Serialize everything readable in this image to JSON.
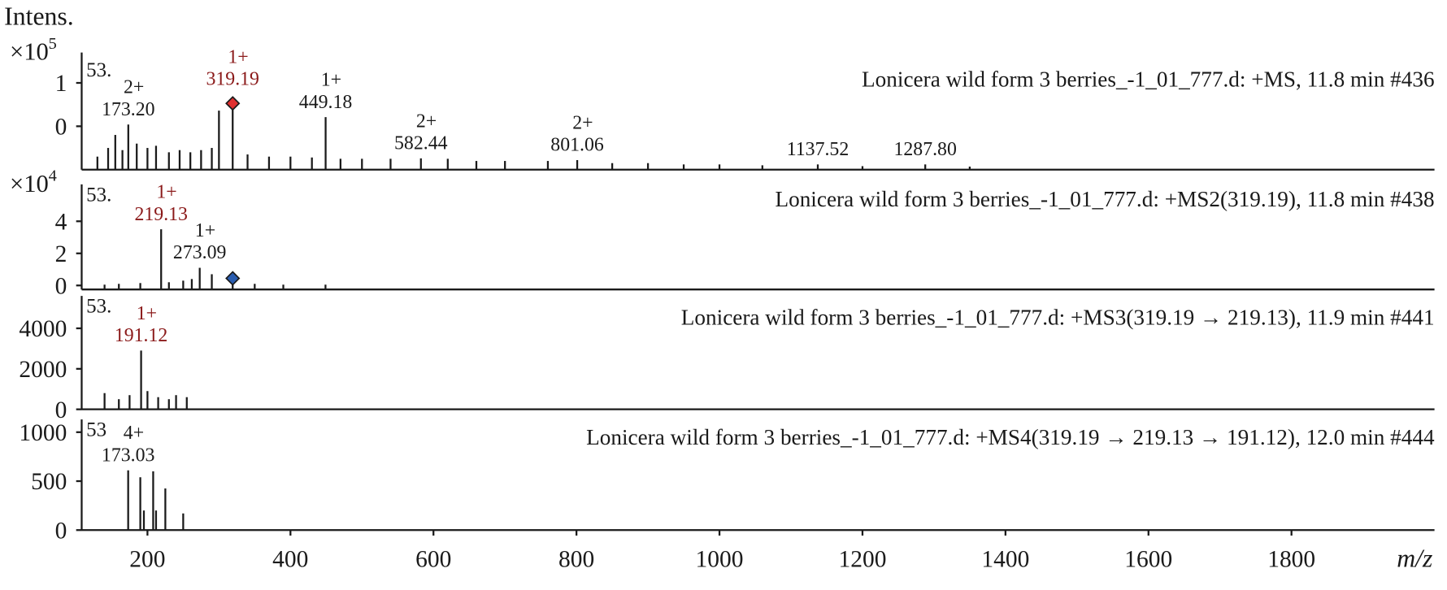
{
  "chart_data": [
    {
      "type": "bar",
      "title": "Lonicera wild form 3 berries_-1_01_777.d: +MS, 11.8 min #436",
      "y_label": "Intens.",
      "scale_label": "×10",
      "scale_exp": "5",
      "corner_label": "53.",
      "x": [
        130,
        145,
        155,
        165,
        173.2,
        185,
        200,
        212,
        230,
        245,
        260,
        275,
        290,
        300,
        319.19,
        340,
        370,
        400,
        430,
        449.18,
        470,
        500,
        540,
        582.44,
        620,
        660,
        700,
        760,
        801.06,
        850,
        900,
        950,
        1000,
        1060,
        1137.52,
        1200,
        1287.8,
        1350
      ],
      "values": [
        -0.7,
        -0.5,
        -0.2,
        -0.55,
        0.04,
        -0.4,
        -0.5,
        -0.45,
        -0.6,
        -0.55,
        -0.6,
        -0.55,
        -0.5,
        0.36,
        0.4,
        -0.65,
        -0.7,
        -0.7,
        -0.72,
        0.21,
        -0.75,
        -0.75,
        -0.75,
        -0.74,
        -0.75,
        -0.8,
        -0.8,
        -0.8,
        -0.78,
        -0.85,
        -0.85,
        -0.88,
        -0.88,
        -0.9,
        -0.88,
        -0.92,
        -0.88,
        -0.93
      ],
      "color": "#1a1a1a",
      "ylim": [
        -1,
        1.7
      ],
      "yticks": [
        0,
        1
      ],
      "precursor_mz": 319.19,
      "precursor_color": "#e03030",
      "annotations": [
        {
          "x": 173.2,
          "charge": "2+",
          "text": "173.20",
          "color": "#1a1a1a"
        },
        {
          "x": 319.19,
          "charge": "1+",
          "text": "319.19",
          "color": "#8b1a1a"
        },
        {
          "x": 449.18,
          "charge": "1+",
          "text": "449.18",
          "color": "#1a1a1a"
        },
        {
          "x": 582.44,
          "charge": "2+",
          "text": "582.44",
          "color": "#1a1a1a"
        },
        {
          "x": 801.06,
          "charge": "2+",
          "text": "801.06",
          "color": "#1a1a1a"
        },
        {
          "x": 1137.52,
          "text": "1137.52",
          "color": "#1a1a1a"
        },
        {
          "x": 1287.8,
          "text": "1287.80",
          "color": "#1a1a1a"
        }
      ],
      "xlim": [
        108,
        2000
      ],
      "xticks": [
        200,
        400,
        600,
        800,
        1000,
        1200,
        1400,
        1600,
        1800
      ],
      "x_label": "m/z"
    },
    {
      "type": "bar",
      "title": "Lonicera wild form 3 berries_-1_01_777.d: +MS2(319.19), 11.8 min #438",
      "scale_label": "×10",
      "scale_exp": "4",
      "corner_label": "53.",
      "x": [
        140,
        160,
        190,
        219.13,
        230,
        250,
        262,
        273.09,
        290,
        319.19,
        350,
        390,
        449
      ],
      "values": [
        0.05,
        0.1,
        0.15,
        3.5,
        0.2,
        0.3,
        0.4,
        1.1,
        0.7,
        0.1,
        0.1,
        0.05,
        0.05
      ],
      "color": "#1a1a1a",
      "ylim": [
        -0.25,
        6.3
      ],
      "yticks": [
        0,
        2,
        4
      ],
      "precursor_mz": 319.19,
      "precursor_color": "#2a5db0",
      "annotations": [
        {
          "x": 219.13,
          "charge": "1+",
          "text": "219.13",
          "color": "#8b1a1a"
        },
        {
          "x": 273.09,
          "charge": "1+",
          "text": "273.09",
          "color": "#1a1a1a"
        }
      ],
      "xlim": [
        108,
        2000
      ]
    },
    {
      "type": "bar",
      "title": "Lonicera wild form 3 berries_-1_01_777.d: +MS3(319.19 → 219.13), 11.9 min #441",
      "corner_label": "53.",
      "x": [
        140,
        160,
        175,
        191.12,
        200,
        215,
        230,
        240,
        255
      ],
      "values": [
        800,
        500,
        700,
        2900,
        900,
        600,
        500,
        700,
        600
      ],
      "color": "#1a1a1a",
      "ylim": [
        0,
        5600
      ],
      "yticks": [
        0,
        2000,
        4000
      ],
      "annotations": [
        {
          "x": 191.12,
          "charge": "1+",
          "text": "191.12",
          "color": "#8b1a1a"
        }
      ],
      "xlim": [
        108,
        2000
      ]
    },
    {
      "type": "bar",
      "title": "Lonicera wild form 3 berries_-1_01_777.d: +MS4(319.19 → 219.13 → 191.12), 12.0 min #444",
      "corner_label": "53",
      "x": [
        173.03,
        190,
        195,
        208,
        212,
        225,
        250
      ],
      "values": [
        610,
        540,
        200,
        600,
        200,
        425,
        170
      ],
      "color": "#1a1a1a",
      "ylim": [
        0,
        1130
      ],
      "yticks": [
        0,
        500,
        1000
      ],
      "annotations": [
        {
          "x": 173.03,
          "charge": "4+",
          "text": "173.03",
          "color": "#1a1a1a"
        }
      ],
      "xlim": [
        108,
        2000
      ]
    }
  ]
}
